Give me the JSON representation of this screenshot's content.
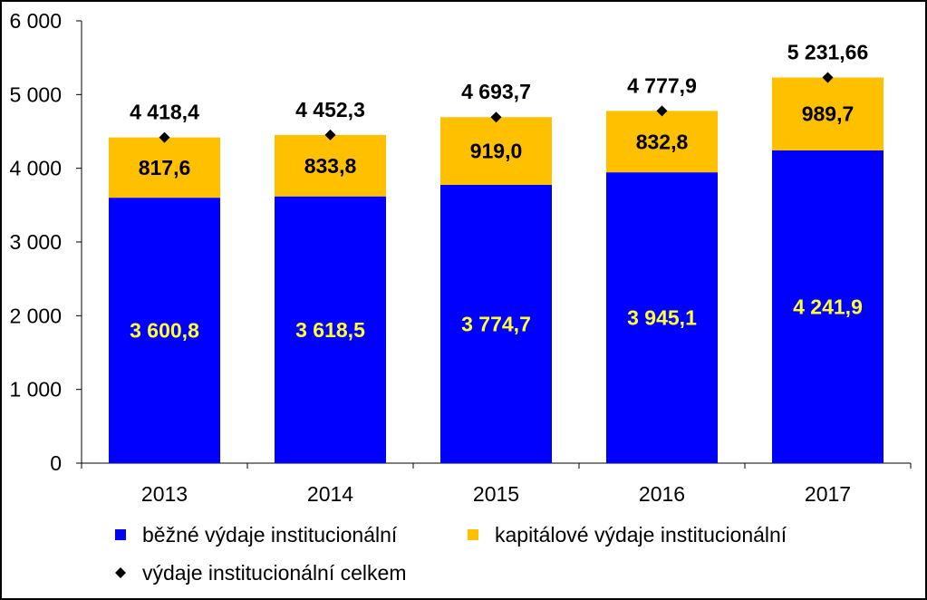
{
  "chart_data": {
    "type": "bar",
    "stacked": true,
    "categories": [
      "2013",
      "2014",
      "2015",
      "2016",
      "2017"
    ],
    "ylim": [
      0,
      6000
    ],
    "yticks": [
      "0",
      "1 000",
      "2 000",
      "3 000",
      "4 000",
      "5 000",
      "6 000"
    ],
    "grid": false,
    "legend_position": "bottom",
    "series": [
      {
        "name": "běžné výdaje institucionální",
        "color": "#0000ff",
        "label_color": "#ffff33",
        "values": [
          3600.8,
          3618.5,
          3774.7,
          3945.1,
          4241.9
        ],
        "labels": [
          "3 600,8",
          "3 618,5",
          "3 774,7",
          "3 945,1",
          "4 241,9"
        ]
      },
      {
        "name": "kapitálové výdaje institucionální",
        "color": "#ffc000",
        "label_color": "#000000",
        "values": [
          817.6,
          833.8,
          919.0,
          832.8,
          989.7
        ],
        "labels": [
          "817,6",
          "833,8",
          "919,0",
          "832,8",
          "989,7"
        ]
      },
      {
        "name": "výdaje institucionální celkem",
        "type": "marker",
        "marker": "diamond",
        "color": "#000000",
        "values": [
          4418.4,
          4452.3,
          4693.7,
          4777.9,
          5231.66
        ],
        "labels": [
          "4 418,4",
          "4 452,3",
          "4 693,7",
          "4 777,9",
          "5 231,66"
        ]
      }
    ]
  }
}
